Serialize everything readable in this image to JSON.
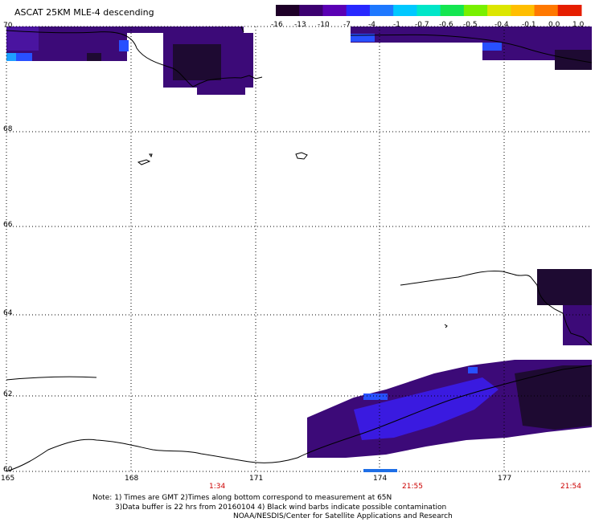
{
  "title": "ASCAT 25KM MLE-4 descending",
  "colorbar": {
    "labels": [
      "-16",
      "-13",
      "-10",
      "-7",
      "-4",
      "-1",
      "-0.7",
      "-0.6",
      "-0.5",
      "-0.4",
      "-0.1",
      "0.0",
      "1.0"
    ],
    "colors": [
      "#1e0028",
      "#3c0070",
      "#5a00b4",
      "#2828ff",
      "#1e78ff",
      "#00c8ff",
      "#00e6c8",
      "#14e650",
      "#78f000",
      "#dce600",
      "#ffbe00",
      "#ff7800",
      "#e61e00"
    ]
  },
  "lat_labels": [
    "70",
    "68",
    "66",
    "64",
    "62",
    "60"
  ],
  "lon_labels": [
    "165",
    "168",
    "171",
    "174",
    "177"
  ],
  "time_labels": [
    "1:34",
    "21:55",
    "21:54"
  ],
  "notes": {
    "line1": "Note: 1) Times are GMT 2)Times along bottom correspond to measurement at 65N",
    "line2": "3)Data buffer is 22 hrs from 20160104 4) Black wind barbs indicate possible contamination",
    "line3": "NOAA/NESDIS/Center for Satellite Applications and Research"
  },
  "colors": {
    "swath": "#3c0a78",
    "swath_dark": "#1e0a32",
    "swath_blue": "#3a1ae0",
    "time_bar": "#1e6ee6",
    "time_text": "#cc0000"
  }
}
